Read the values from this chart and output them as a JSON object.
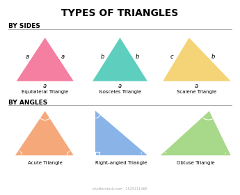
{
  "title": "TYPES OF TRIANGLES",
  "section1": "BY SIDES",
  "section2": "BY ANGLES",
  "bg_color": "#ffffff",
  "title_fontsize": 10,
  "section_fontsize": 6.5,
  "label_fontsize": 6,
  "name_fontsize": 5,
  "line_color": "#aaaaaa",
  "line_lw": 0.7,
  "eq_color": "#f47fa0",
  "iso_color": "#5ecfbf",
  "sc_color": "#f5d478",
  "ac_color": "#f5a97a",
  "rt_color": "#8ab4e8",
  "ob_color": "#a8d98a",
  "watermark": "shutterstock.com · 2525111365"
}
